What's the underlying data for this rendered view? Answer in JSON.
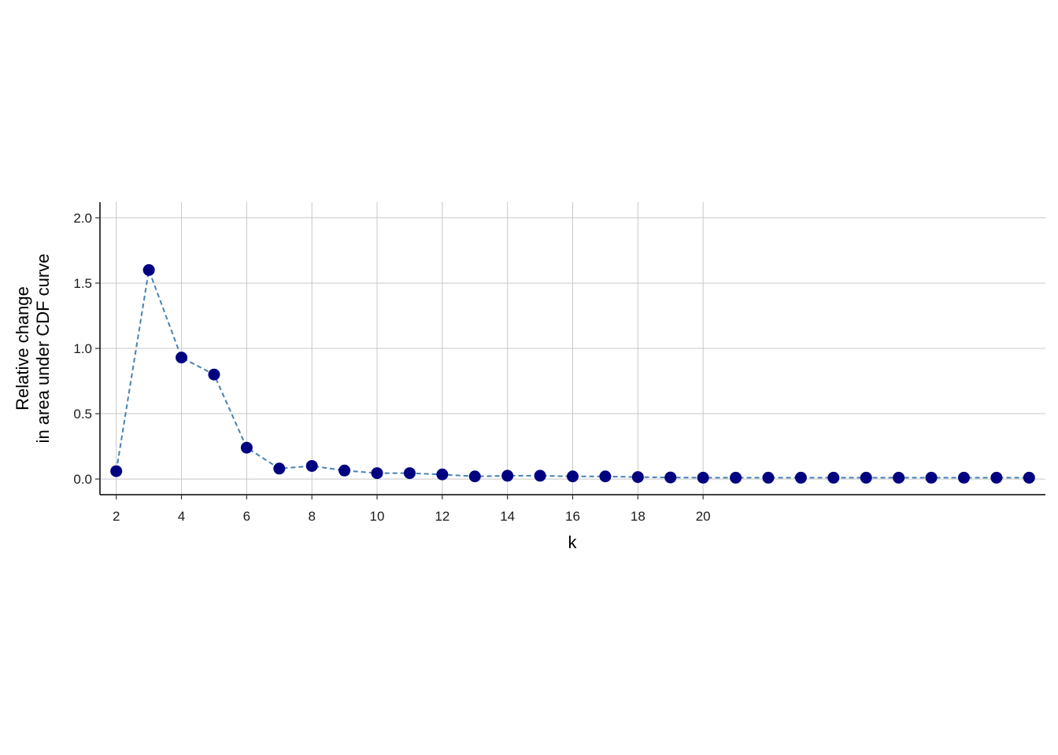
{
  "chart_data": {
    "type": "line",
    "title": "",
    "xlabel": "k",
    "ylabel_lines": [
      "Relative change",
      "in area under CDF curve"
    ],
    "x": [
      2,
      3,
      4,
      5,
      6,
      7,
      8,
      9,
      10,
      11,
      12,
      13,
      14,
      15,
      16,
      17,
      18,
      19,
      20,
      21,
      22,
      23,
      24,
      25,
      26,
      27,
      28,
      29,
      30
    ],
    "values": [
      0.06,
      1.6,
      0.93,
      0.8,
      0.24,
      0.08,
      0.1,
      0.065,
      0.045,
      0.045,
      0.035,
      0.02,
      0.025,
      0.025,
      0.02,
      0.02,
      0.015,
      0.012,
      0.01,
      0.01,
      0.01,
      0.01,
      0.01,
      0.01,
      0.01,
      0.01,
      0.01,
      0.01,
      0.01
    ],
    "x_ticks": [
      2,
      4,
      6,
      8,
      10,
      12,
      14,
      16,
      18,
      20
    ],
    "x_tick_labels": [
      "2",
      "4",
      "6",
      "8",
      "10",
      "12",
      "14",
      "16",
      "18",
      "20"
    ],
    "y_ticks": [
      0.0,
      0.5,
      1.0,
      1.5,
      2.0
    ],
    "y_tick_labels": [
      "0.0",
      "0.5",
      "1.0",
      "1.5",
      "2.0"
    ],
    "xlim": [
      1.5,
      30.5
    ],
    "ylim": [
      -0.12,
      2.12
    ],
    "grid": true,
    "line_style": "dashed",
    "colors": {
      "line": "#4682b4",
      "points": "#000080",
      "grid": "#c8c8c8",
      "axis": "#000000"
    }
  }
}
